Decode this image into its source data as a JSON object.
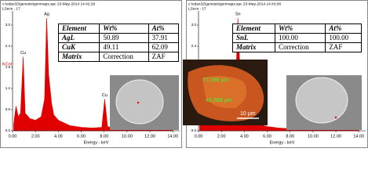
{
  "chart_data": [
    {
      "type": "area",
      "header": "c:\\edax32\\genesis\\genmaps.spc  23-May-2014 14:42:28",
      "subheader": "LSecs : 17",
      "y_label": "KCnt",
      "x_label": "Energy - keV",
      "color": "#e00000",
      "x": [
        0.1,
        0.3,
        0.5,
        0.7,
        0.93,
        1.1,
        1.5,
        2.0,
        2.5,
        2.8,
        2.98,
        3.15,
        3.4,
        3.6,
        4.0,
        5.0,
        6.0,
        7.0,
        7.8,
        8.05,
        8.3,
        9.0,
        10.0,
        12.0,
        14.0
      ],
      "values": [
        0.2,
        0.7,
        0.4,
        0.5,
        2.1,
        0.5,
        0.35,
        0.3,
        0.4,
        0.9,
        3.2,
        1.6,
        0.8,
        0.45,
        0.3,
        0.15,
        0.1,
        0.08,
        0.1,
        0.9,
        0.12,
        0.06,
        0.05,
        0.03,
        0.02
      ],
      "xlim": [
        0,
        14.6
      ],
      "ylim": [
        0,
        3.4
      ],
      "xticks": [
        {
          "value": 0,
          "label": "0.00"
        },
        {
          "value": 2,
          "label": "2.00"
        },
        {
          "value": 4,
          "label": "4.00"
        },
        {
          "value": 6,
          "label": "6.00"
        },
        {
          "value": 8,
          "label": "8.00"
        },
        {
          "value": 10,
          "label": "10.00"
        },
        {
          "value": 12,
          "label": "12.00"
        },
        {
          "value": 14,
          "label": "14.00"
        }
      ],
      "yticks": [
        {
          "value": 0,
          "label": "0.0"
        },
        0.6,
        1.2,
        1.8,
        2.4,
        {
          "value": 3,
          "label": "3.0"
        }
      ],
      "peak_labels": [
        {
          "label": "Cu",
          "x": 0.93
        },
        {
          "label": "Ag",
          "x": 2.98
        },
        {
          "label": "Cu",
          "x": 8.05
        }
      ],
      "table": {
        "header": [
          "Element",
          "Wt%",
          "At%"
        ],
        "rows": [
          [
            "AgL",
            "50.89",
            "37.91"
          ],
          [
            "CuK",
            "49.11",
            "62.09"
          ],
          [
            "Matrix",
            "Correction",
            "ZAF"
          ]
        ]
      },
      "image_labels": []
    },
    {
      "type": "area",
      "header": "c:\\edax32\\genesis\\genmaps.spc  23-May-2014 14:43:06",
      "subheader": "LSecs : 17",
      "y_label": "KCnt",
      "x_label": "Energy - keV",
      "color": "#e00000",
      "x": [
        0.1,
        0.3,
        0.5,
        0.8,
        1.2,
        1.8,
        2.4,
        3.0,
        3.2,
        3.44,
        3.66,
        3.9,
        4.2,
        4.6,
        5.0,
        6.0,
        7.0,
        8.0,
        9.0,
        10.0,
        12.0,
        14.0
      ],
      "values": [
        0.3,
        0.6,
        0.4,
        0.3,
        0.25,
        0.25,
        0.3,
        0.45,
        0.8,
        3.2,
        1.4,
        0.7,
        0.5,
        0.3,
        0.2,
        0.12,
        0.08,
        0.06,
        0.05,
        0.04,
        0.03,
        0.02
      ],
      "xlim": [
        0,
        14.6
      ],
      "ylim": [
        0,
        3.4
      ],
      "xticks": [
        {
          "value": 0,
          "label": "0.00"
        },
        {
          "value": 2,
          "label": "2.00"
        },
        {
          "value": 4,
          "label": "4.00"
        },
        {
          "value": 6,
          "label": "6.00"
        },
        {
          "value": 8,
          "label": "8.00"
        },
        {
          "value": 10,
          "label": "10.00"
        },
        {
          "value": 12,
          "label": "12.00"
        },
        {
          "value": 14,
          "label": "14.00"
        }
      ],
      "yticks": [
        {
          "value": 0,
          "label": "0.0"
        },
        0.6,
        1.2,
        1.8,
        2.4,
        {
          "value": 3,
          "label": "3.0"
        }
      ],
      "peak_labels": [
        {
          "label": "Sn",
          "x": 3.44
        }
      ],
      "table": {
        "header": [
          "Element",
          "Wt%",
          "At%"
        ],
        "rows": [
          [
            "SnL",
            "100.00",
            "100.00"
          ],
          [
            "Matrix",
            "Correction",
            "ZAF"
          ]
        ]
      },
      "image_labels": [
        "77,288 µm",
        "40,088 µm",
        "10 µm"
      ]
    }
  ]
}
